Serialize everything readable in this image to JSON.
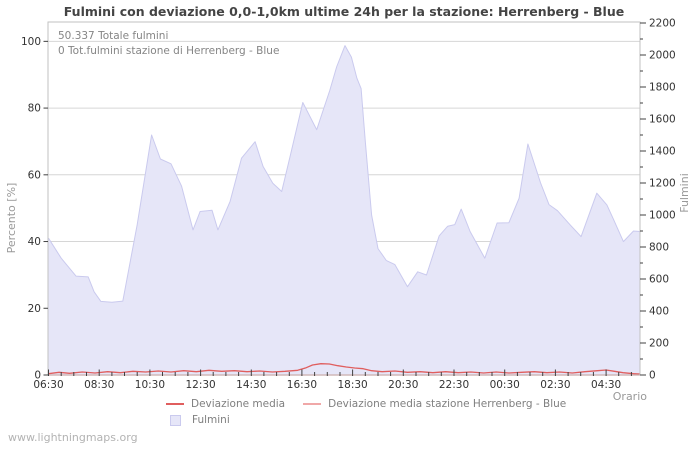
{
  "title": "Fulmini con deviazione 0,0-1,0km ultime 24h per la stazione: Herrenberg - Blue",
  "watermark": "www.lightningmaps.org",
  "annotations": {
    "total": "50.337 Totale fulmini",
    "station": "0 Tot.fulmini stazione di Herrenberg - Blue"
  },
  "legend": {
    "deviation": "Deviazione media",
    "station_deviation": "Deviazione media stazione Herrenberg - Blue",
    "fulmini": "Fulmini"
  },
  "colors": {
    "area_fill": "#e6e6f8",
    "area_edge": "#cacaee",
    "deviation_line": "#e05e5e",
    "station_line": "#f0a8a8",
    "grid": "#d6d6d6",
    "border": "#c2c2c2",
    "tick": "#404040",
    "tick_text": "#333333",
    "title_text": "#444444",
    "unit_text": "#999999",
    "annotation_text": "#858585",
    "legend_text": "#7f7f7f",
    "watermark_text": "#b3b3b3"
  },
  "chart_data": {
    "type": "area",
    "title": "Fulmini con deviazione 0,0-1,0km ultime 24h per la stazione: Herrenberg - Blue",
    "grid": "horizontal-only",
    "legend_position": "bottom-center",
    "totals": {
      "total_fulmini": 50337,
      "station_fulmini": 0
    },
    "x_axis": {
      "label": "Orario",
      "unit": "time, 24h window starting 06:30",
      "tick_labels": [
        "06:30",
        "08:30",
        "10:30",
        "12:30",
        "14:30",
        "16:30",
        "18:30",
        "20:30",
        "22:30",
        "00:30",
        "02:30",
        "04:30"
      ],
      "tick_minutes": [
        0,
        120,
        240,
        360,
        480,
        600,
        720,
        840,
        960,
        1080,
        1200,
        1320
      ],
      "minor_tick_step_minutes": 30,
      "range_minutes": [
        0,
        1400
      ]
    },
    "left_axis": {
      "label": "Percento  [%]",
      "ticks": [
        0,
        20,
        40,
        60,
        80,
        100
      ],
      "range": [
        0,
        105.8
      ]
    },
    "right_axis": {
      "label": "Fulmini",
      "ticks": [
        0,
        200,
        400,
        600,
        800,
        1000,
        1200,
        1400,
        1600,
        1800,
        2000,
        2200
      ],
      "minor_tick_step": 100,
      "range": [
        0,
        2206
      ]
    },
    "series": [
      {
        "name": "Fulmini",
        "style": "area",
        "axis": "right",
        "points": [
          [
            0,
            855
          ],
          [
            30,
            730
          ],
          [
            65,
            618
          ],
          [
            94,
            613
          ],
          [
            108,
            520
          ],
          [
            124,
            460
          ],
          [
            150,
            455
          ],
          [
            176,
            462
          ],
          [
            210,
            940
          ],
          [
            244,
            1500
          ],
          [
            265,
            1350
          ],
          [
            290,
            1320
          ],
          [
            315,
            1180
          ],
          [
            342,
            907
          ],
          [
            359,
            1022
          ],
          [
            387,
            1030
          ],
          [
            401,
            907
          ],
          [
            430,
            1085
          ],
          [
            457,
            1355
          ],
          [
            489,
            1458
          ],
          [
            508,
            1303
          ],
          [
            531,
            1199
          ],
          [
            552,
            1147
          ],
          [
            572,
            1366
          ],
          [
            602,
            1703
          ],
          [
            635,
            1533
          ],
          [
            650,
            1654
          ],
          [
            666,
            1779
          ],
          [
            682,
            1925
          ],
          [
            702,
            2059
          ],
          [
            717,
            1987
          ],
          [
            730,
            1855
          ],
          [
            740,
            1790
          ],
          [
            750,
            1460
          ],
          [
            765,
            1000
          ],
          [
            780,
            790
          ],
          [
            800,
            715
          ],
          [
            820,
            690
          ],
          [
            850,
            552
          ],
          [
            874,
            645
          ],
          [
            895,
            625
          ],
          [
            925,
            870
          ],
          [
            945,
            930
          ],
          [
            962,
            940
          ],
          [
            977,
            1037
          ],
          [
            998,
            897
          ],
          [
            1033,
            730
          ],
          [
            1062,
            950
          ],
          [
            1090,
            952
          ],
          [
            1114,
            1105
          ],
          [
            1135,
            1444
          ],
          [
            1165,
            1200
          ],
          [
            1185,
            1065
          ],
          [
            1205,
            1027
          ],
          [
            1235,
            938
          ],
          [
            1261,
            865
          ],
          [
            1298,
            1136
          ],
          [
            1322,
            1063
          ],
          [
            1338,
            970
          ],
          [
            1361,
            834
          ],
          [
            1385,
            900
          ],
          [
            1400,
            897
          ]
        ]
      },
      {
        "name": "Deviazione media",
        "style": "line",
        "axis": "left",
        "points": [
          [
            0,
            0.4
          ],
          [
            25,
            0.8
          ],
          [
            50,
            0.5
          ],
          [
            80,
            0.9
          ],
          [
            110,
            0.6
          ],
          [
            140,
            1.0
          ],
          [
            170,
            0.7
          ],
          [
            200,
            1.1
          ],
          [
            230,
            0.9
          ],
          [
            260,
            1.2
          ],
          [
            290,
            0.9
          ],
          [
            320,
            1.3
          ],
          [
            350,
            1.0
          ],
          [
            380,
            1.4
          ],
          [
            410,
            1.1
          ],
          [
            440,
            1.3
          ],
          [
            470,
            1.0
          ],
          [
            500,
            1.2
          ],
          [
            530,
            0.9
          ],
          [
            560,
            1.1
          ],
          [
            590,
            1.4
          ],
          [
            610,
            2.2
          ],
          [
            625,
            3.0
          ],
          [
            645,
            3.4
          ],
          [
            665,
            3.3
          ],
          [
            685,
            2.8
          ],
          [
            705,
            2.4
          ],
          [
            725,
            2.1
          ],
          [
            745,
            1.9
          ],
          [
            765,
            1.3
          ],
          [
            790,
            1.0
          ],
          [
            820,
            1.2
          ],
          [
            850,
            0.8
          ],
          [
            880,
            1.0
          ],
          [
            910,
            0.7
          ],
          [
            940,
            1.0
          ],
          [
            970,
            0.7
          ],
          [
            1000,
            0.9
          ],
          [
            1030,
            0.6
          ],
          [
            1060,
            0.9
          ],
          [
            1090,
            0.6
          ],
          [
            1120,
            0.8
          ],
          [
            1150,
            1.0
          ],
          [
            1180,
            0.7
          ],
          [
            1210,
            0.9
          ],
          [
            1240,
            0.6
          ],
          [
            1270,
            1.0
          ],
          [
            1300,
            1.3
          ],
          [
            1320,
            1.5
          ],
          [
            1340,
            1.1
          ],
          [
            1360,
            0.7
          ],
          [
            1385,
            0.4
          ],
          [
            1400,
            0.3
          ]
        ]
      },
      {
        "name": "Deviazione media stazione Herrenberg - Blue",
        "style": "line",
        "axis": "left",
        "points": [
          [
            0,
            0
          ],
          [
            1400,
            0
          ]
        ]
      }
    ]
  }
}
